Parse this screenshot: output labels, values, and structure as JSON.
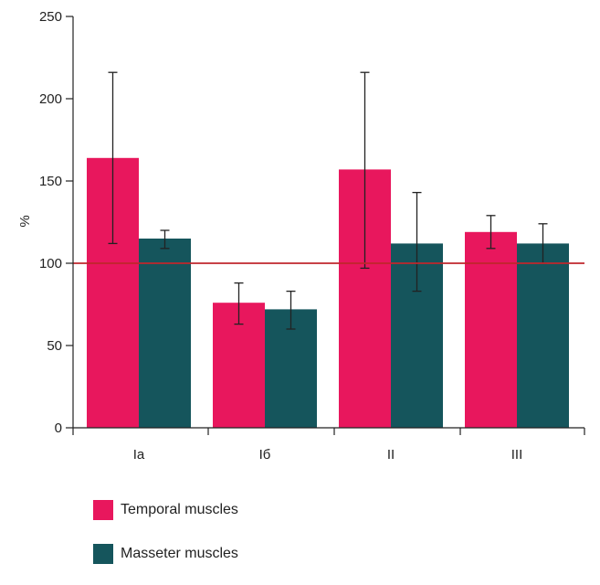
{
  "chart_data": {
    "type": "bar",
    "title": "",
    "xlabel": "",
    "ylabel": "%",
    "ylim": [
      0,
      250
    ],
    "yticks": [
      0,
      50,
      100,
      150,
      200,
      250
    ],
    "categories": [
      "Ia",
      "Iб",
      "II",
      "III"
    ],
    "series": [
      {
        "name": "Temporal muscles",
        "color": "#e8175d",
        "values": [
          164,
          76,
          157,
          119
        ],
        "err_low": [
          112,
          63,
          97,
          109
        ],
        "err_high": [
          216,
          88,
          216,
          129
        ]
      },
      {
        "name": "Masseter muscles",
        "color": "#15555c",
        "values": [
          115,
          72,
          112,
          112
        ],
        "err_low": [
          109,
          60,
          83,
          100
        ],
        "err_high": [
          120,
          83,
          143,
          124
        ]
      }
    ],
    "reference_line": {
      "value": 100,
      "color": "#c0272d"
    },
    "grid": false,
    "legend_position": "bottom-left"
  }
}
